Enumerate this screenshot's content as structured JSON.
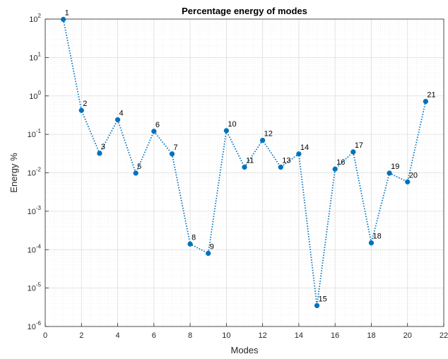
{
  "chart_data": {
    "type": "line",
    "title": "Percentage energy of modes",
    "xlabel": "Modes",
    "ylabel": "Energy %",
    "xlim": [
      0,
      22
    ],
    "ylim": [
      1e-06,
      100
    ],
    "yscale": "log",
    "grid": true,
    "minor_grid": true,
    "line_style": "dotted",
    "marker": "circle",
    "color": "#0072BD",
    "x_ticks": [
      0,
      2,
      4,
      6,
      8,
      10,
      12,
      14,
      16,
      18,
      20,
      22
    ],
    "y_ticks": [
      {
        "base": "10",
        "exp": "-6",
        "value": 1e-06
      },
      {
        "base": "10",
        "exp": "-5",
        "value": 1e-05
      },
      {
        "base": "10",
        "exp": "-4",
        "value": 0.0001
      },
      {
        "base": "10",
        "exp": "-3",
        "value": 0.001
      },
      {
        "base": "10",
        "exp": "-2",
        "value": 0.01
      },
      {
        "base": "10",
        "exp": "-1",
        "value": 0.1
      },
      {
        "base": "10",
        "exp": "0",
        "value": 1
      },
      {
        "base": "10",
        "exp": "1",
        "value": 10
      },
      {
        "base": "10",
        "exp": "2",
        "value": 100
      }
    ],
    "points": [
      {
        "label": "1",
        "x": 1,
        "y": 98.3
      },
      {
        "label": "2",
        "x": 2,
        "y": 0.42
      },
      {
        "label": "3",
        "x": 3,
        "y": 0.032
      },
      {
        "label": "4",
        "x": 4,
        "y": 0.24
      },
      {
        "label": "5",
        "x": 5,
        "y": 0.0098
      },
      {
        "label": "6",
        "x": 6,
        "y": 0.12
      },
      {
        "label": "7",
        "x": 7,
        "y": 0.031
      },
      {
        "label": "8",
        "x": 8,
        "y": 0.00014
      },
      {
        "label": "9",
        "x": 9,
        "y": 8e-05
      },
      {
        "label": "10",
        "x": 10,
        "y": 0.125
      },
      {
        "label": "11",
        "x": 11,
        "y": 0.014
      },
      {
        "label": "12",
        "x": 12,
        "y": 0.07
      },
      {
        "label": "13",
        "x": 13,
        "y": 0.014
      },
      {
        "label": "14",
        "x": 14,
        "y": 0.031
      },
      {
        "label": "15",
        "x": 15,
        "y": 3.5e-06
      },
      {
        "label": "16",
        "x": 16,
        "y": 0.0125
      },
      {
        "label": "17",
        "x": 17,
        "y": 0.035
      },
      {
        "label": "18",
        "x": 18,
        "y": 0.00015
      },
      {
        "label": "19",
        "x": 19,
        "y": 0.0098
      },
      {
        "label": "20",
        "x": 20,
        "y": 0.0058
      },
      {
        "label": "21",
        "x": 21,
        "y": 0.72
      }
    ]
  }
}
